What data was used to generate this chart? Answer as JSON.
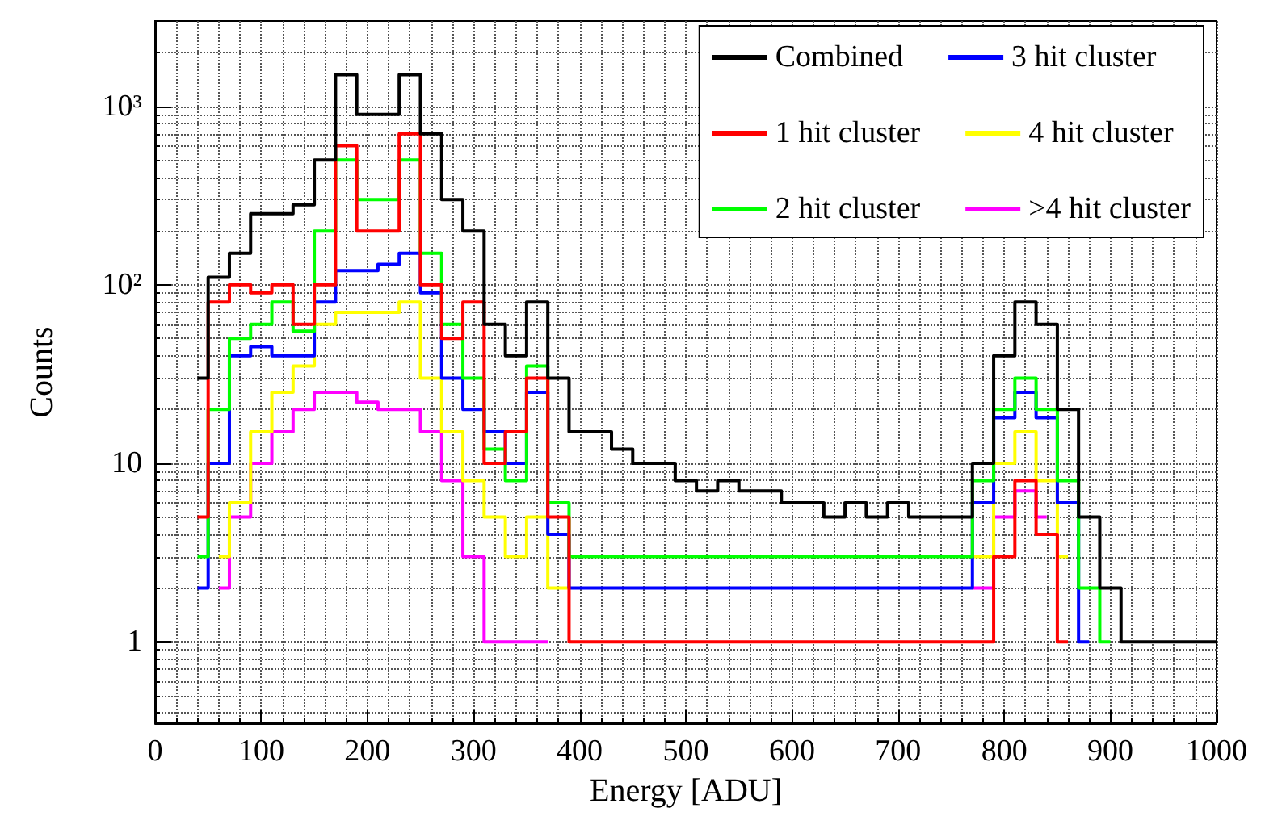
{
  "chart_data": {
    "type": "step",
    "xlabel": "Energy [ADU]",
    "ylabel": "Counts",
    "x": [
      40,
      60,
      80,
      100,
      120,
      140,
      160,
      180,
      200,
      220,
      240,
      260,
      280,
      300,
      320,
      340,
      360,
      380,
      400,
      420,
      440,
      460,
      480,
      500,
      520,
      540,
      560,
      580,
      600,
      620,
      640,
      660,
      680,
      700,
      720,
      740,
      760,
      780,
      800,
      820,
      840,
      860,
      880,
      900,
      920,
      940,
      960,
      980,
      1000
    ],
    "series": [
      {
        "name": "Combined",
        "color": "#000000",
        "values": [
          30,
          110,
          150,
          250,
          250,
          280,
          500,
          1500,
          900,
          900,
          1500,
          700,
          300,
          200,
          60,
          40,
          80,
          30,
          15,
          15,
          12,
          10,
          10,
          8,
          7,
          8,
          7,
          7,
          6,
          6,
          5,
          6,
          5,
          6,
          5,
          5,
          5,
          10,
          40,
          80,
          60,
          20,
          5,
          2,
          1,
          1,
          1,
          1,
          1
        ]
      },
      {
        "name": "1 hit cluster",
        "color": "#ff0000",
        "values": [
          5,
          80,
          100,
          90,
          100,
          60,
          100,
          600,
          200,
          200,
          700,
          100,
          50,
          80,
          10,
          15,
          30,
          5,
          1,
          1,
          1,
          1,
          1,
          1,
          1,
          1,
          1,
          1,
          1,
          1,
          1,
          1,
          1,
          1,
          1,
          1,
          1,
          1,
          3,
          8,
          4,
          1,
          null,
          null,
          null,
          null,
          null,
          null,
          null
        ]
      },
      {
        "name": "2 hit cluster",
        "color": "#00ff00",
        "values": [
          3,
          20,
          50,
          60,
          80,
          55,
          200,
          500,
          300,
          300,
          500,
          150,
          60,
          30,
          12,
          8,
          35,
          6,
          3,
          3,
          3,
          3,
          3,
          3,
          3,
          3,
          3,
          3,
          3,
          3,
          3,
          3,
          3,
          3,
          3,
          3,
          3,
          8,
          20,
          30,
          20,
          8,
          2,
          1,
          null,
          null,
          null,
          null,
          null
        ]
      },
      {
        "name": "3 hit cluster",
        "color": "#0000ff",
        "values": [
          2,
          10,
          40,
          45,
          40,
          40,
          80,
          120,
          120,
          130,
          150,
          90,
          30,
          20,
          15,
          10,
          25,
          4,
          2,
          2,
          2,
          2,
          2,
          2,
          2,
          2,
          2,
          2,
          2,
          2,
          2,
          2,
          2,
          2,
          2,
          2,
          2,
          6,
          18,
          25,
          18,
          6,
          1,
          null,
          null,
          null,
          null,
          null,
          null
        ]
      },
      {
        "name": "4 hit cluster",
        "color": "#ffff00",
        "values": [
          null,
          3,
          6,
          15,
          25,
          35,
          60,
          70,
          70,
          70,
          80,
          30,
          15,
          8,
          5,
          3,
          5,
          2,
          null,
          null,
          null,
          null,
          null,
          null,
          null,
          null,
          null,
          null,
          null,
          null,
          null,
          null,
          null,
          null,
          null,
          null,
          null,
          3,
          10,
          15,
          8,
          3,
          null,
          null,
          null,
          null,
          null,
          null,
          null
        ]
      },
      {
        "name": ">4 hit cluster",
        "color": "#ff00ff",
        "values": [
          null,
          2,
          5,
          10,
          15,
          20,
          25,
          25,
          22,
          20,
          20,
          15,
          8,
          3,
          1,
          1,
          1,
          null,
          null,
          null,
          null,
          null,
          null,
          null,
          null,
          null,
          null,
          null,
          null,
          null,
          null,
          null,
          null,
          null,
          null,
          null,
          null,
          2,
          5,
          7,
          5,
          null,
          null,
          null,
          null,
          null,
          null,
          null,
          null
        ]
      }
    ],
    "xlim": [
      0,
      1000
    ],
    "xticks": [
      0,
      100,
      200,
      300,
      400,
      500,
      600,
      700,
      800,
      900,
      1000
    ],
    "ylim": [
      0.35,
      3000
    ],
    "yticks": [
      {
        "value": 1,
        "label": "1"
      },
      {
        "value": 10,
        "label": "10"
      },
      {
        "value": 100,
        "label": "10²"
      },
      {
        "value": 1000,
        "label": "10³"
      }
    ],
    "log": "y",
    "grid": true,
    "legend": "top right",
    "line_style": "solid"
  }
}
